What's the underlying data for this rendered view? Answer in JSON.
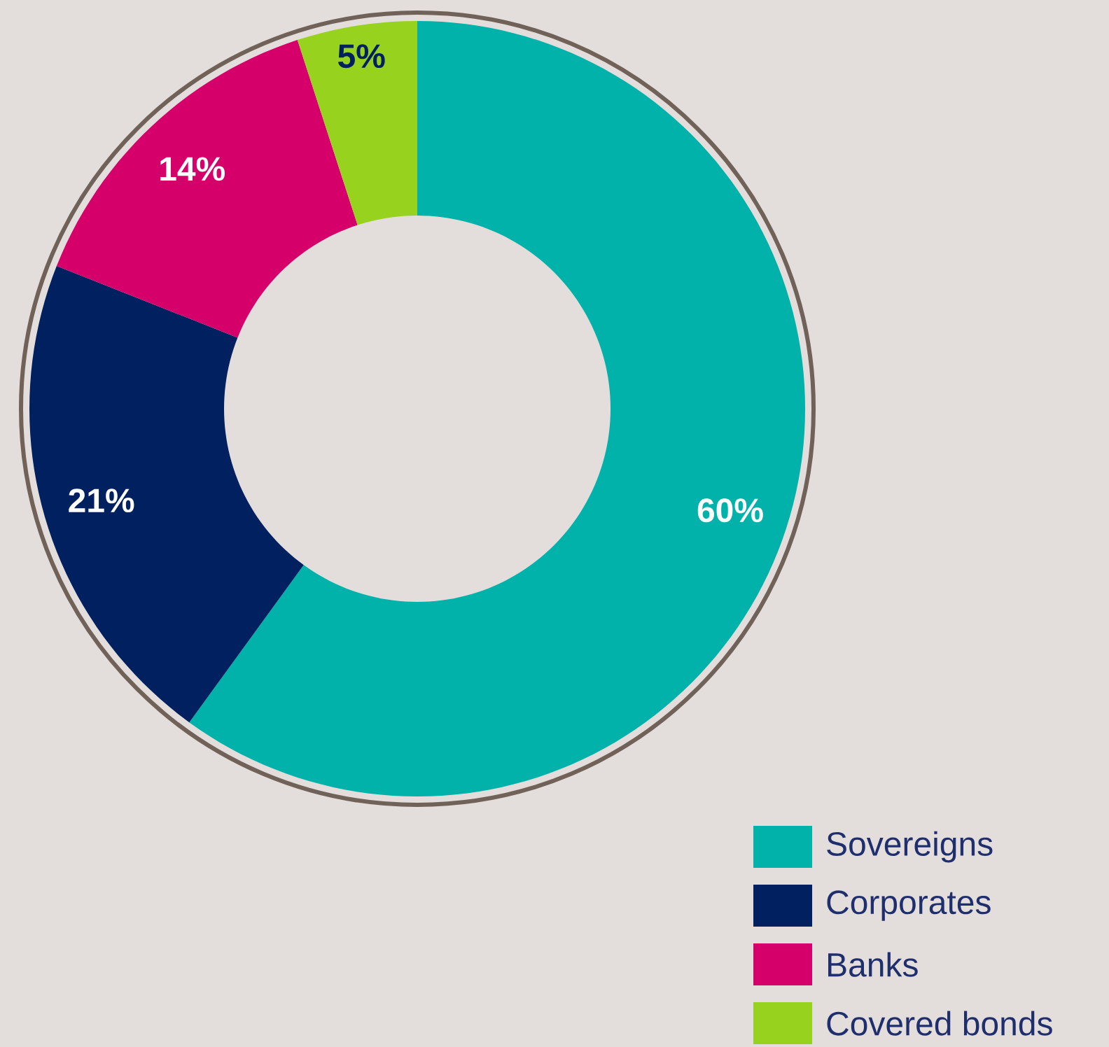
{
  "chart_data": {
    "type": "donut",
    "categories": [
      "Sovereigns",
      "Corporates",
      "Banks",
      "Covered bonds"
    ],
    "values": [
      60,
      21,
      14,
      5
    ],
    "colors": [
      "#00b2a9",
      "#002060",
      "#d6006a",
      "#97d31e"
    ],
    "value_labels": [
      "60%",
      "21%",
      "14%",
      "5%"
    ],
    "legend": "bottom right"
  }
}
